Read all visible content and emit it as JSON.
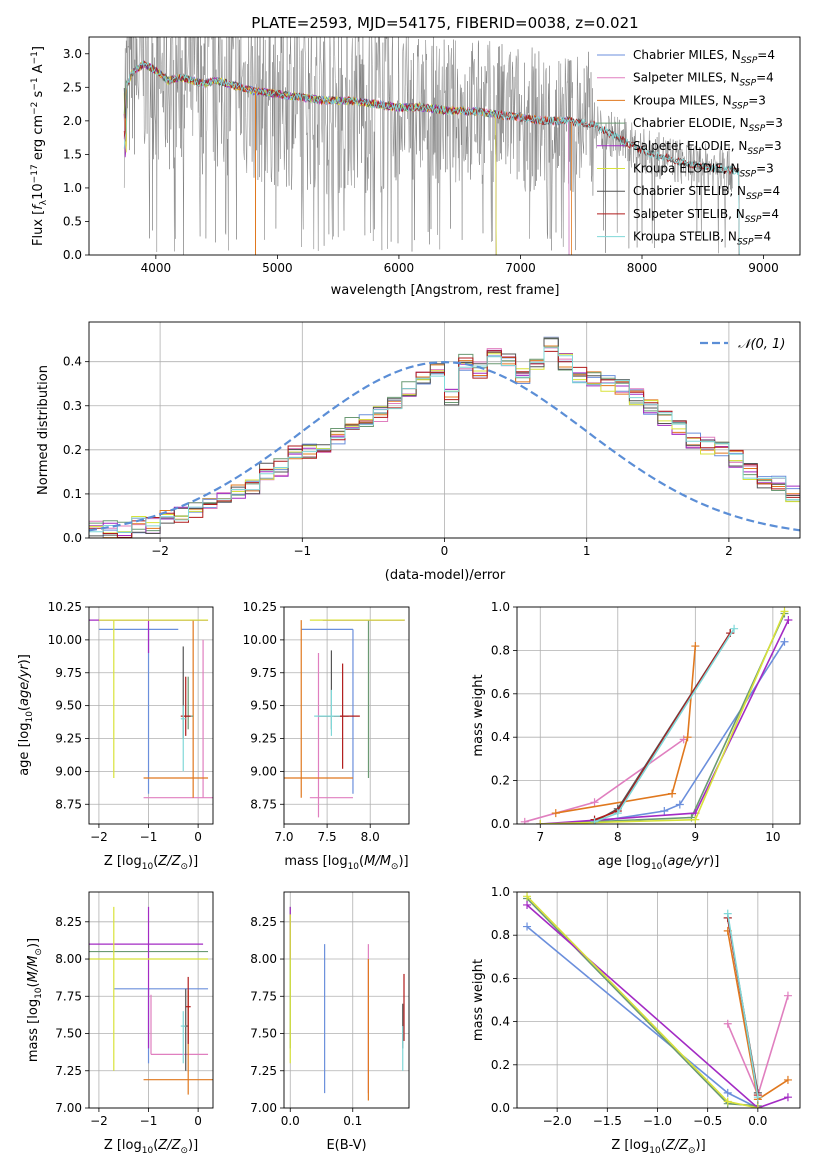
{
  "colors": {
    "Chabrier MILES": "#6b8fdc",
    "Salpeter MILES": "#e07fbf",
    "Kroupa MILES": "#e0781e",
    "Chabrier ELODIE": "#6b9a73",
    "Salpeter ELODIE": "#a32bc4",
    "Kroupa ELODIE": "#d8e23a",
    "Chabrier STELIB": "#555555",
    "Salpeter STELIB": "#b01c1c",
    "Kroupa STELIB": "#80d8d8",
    "data": "#808080",
    "normal": "#5b8ed6"
  },
  "chart_data": [
    {
      "id": "spectrum",
      "type": "line",
      "title": "PLATE=2593, MJD=54175, FIBERID=0038, z=0.021",
      "xlabel": "wavelength [Angstrom, rest frame]",
      "ylabel": "Flux [f_λ 10^-17 erg cm^-2 s^-1 A^-1]",
      "xlim": [
        3450,
        9300
      ],
      "ylim": [
        0,
        3.25
      ],
      "xticks": [
        4000,
        5000,
        6000,
        7000,
        8000,
        9000
      ],
      "yticks": [
        0.0,
        0.5,
        1.0,
        1.5,
        2.0,
        2.5,
        3.0
      ],
      "grid": false,
      "legend_position": "top-right",
      "model_continuum": {
        "x": [
          3740,
          3800,
          3900,
          4000,
          4100,
          4200,
          4300,
          4400,
          4500,
          4600,
          4700,
          4800,
          4900,
          5000,
          5200,
          5400,
          5600,
          5800,
          6000,
          6200,
          6400,
          6600,
          6800,
          7000,
          7200,
          7400,
          7600,
          7800,
          8000,
          8200,
          8400,
          8600,
          8800
        ],
        "y": [
          2.4,
          2.7,
          2.85,
          2.75,
          2.6,
          2.65,
          2.6,
          2.55,
          2.6,
          2.55,
          2.5,
          2.45,
          2.42,
          2.4,
          2.35,
          2.3,
          2.3,
          2.25,
          2.2,
          2.2,
          2.15,
          2.15,
          2.1,
          2.05,
          2.0,
          2.0,
          1.95,
          1.75,
          1.55,
          1.45,
          1.35,
          1.3,
          1.25
        ]
      },
      "series": [
        {
          "name": "Chabrier MILES, N_SSP=4",
          "xmax": 7400
        },
        {
          "name": "Salpeter MILES, N_SSP=4",
          "xmax": 7400
        },
        {
          "name": "Kroupa MILES, N_SSP=3",
          "xmax": 7420
        },
        {
          "name": "Chabrier ELODIE, N_SSP=3",
          "xmax": 6800
        },
        {
          "name": "Salpeter ELODIE, N_SSP=3",
          "xmax": 6800
        },
        {
          "name": "Kroupa ELODIE, N_SSP=3",
          "xmax": 6800
        },
        {
          "name": "Chabrier STELIB, N_SSP=4",
          "xmax": 8800
        },
        {
          "name": "Salpeter STELIB, N_SSP=4",
          "xmax": 8800
        },
        {
          "name": "Kroupa STELIB, N_SSP=4",
          "xmax": 8800
        }
      ]
    },
    {
      "id": "residuals",
      "type": "histogram",
      "xlabel": "(data-model)/error",
      "ylabel": "Normed distribution",
      "xlim": [
        -2.5,
        2.5
      ],
      "ylim": [
        0,
        0.49
      ],
      "xticks": [
        -2,
        -1,
        0,
        1,
        2
      ],
      "yticks": [
        0.0,
        0.1,
        0.2,
        0.3,
        0.4
      ],
      "grid": true,
      "legend_position": "top-right",
      "legend_label": "𝒩(0, 1)",
      "bin_edges_start": -2.5,
      "bin_width": 0.1,
      "bin_values": [
        0.02,
        0.02,
        0.02,
        0.03,
        0.03,
        0.05,
        0.05,
        0.06,
        0.07,
        0.09,
        0.11,
        0.12,
        0.15,
        0.16,
        0.19,
        0.2,
        0.2,
        0.23,
        0.26,
        0.27,
        0.28,
        0.31,
        0.34,
        0.36,
        0.38,
        0.32,
        0.4,
        0.38,
        0.41,
        0.4,
        0.37,
        0.4,
        0.44,
        0.4,
        0.37,
        0.36,
        0.35,
        0.34,
        0.32,
        0.3,
        0.27,
        0.25,
        0.22,
        0.21,
        0.2,
        0.18,
        0.15,
        0.13,
        0.12,
        0.1,
        0.08,
        0.07,
        0.06,
        0.05,
        0.04,
        0.04,
        0.03,
        0.03,
        0.02,
        0.02
      ]
    },
    {
      "id": "age-vs-Z",
      "type": "errorbar",
      "xlabel": "Z [log10(Z/Z⊙)]",
      "ylabel": "age  [log10(age/yr)]",
      "xlim": [
        -2.2,
        0.3
      ],
      "ylim": [
        8.6,
        10.25
      ],
      "xticks": [
        -2,
        -1,
        0
      ],
      "yticks": [
        8.75,
        9.0,
        9.25,
        9.5,
        9.75,
        10.0,
        10.25
      ],
      "grid": true,
      "points": [
        {
          "model": "Chabrier MILES",
          "x": -1.0,
          "y": 10.08,
          "xerr": [
            1.0,
            0.6
          ],
          "yerr": [
            1.25,
            0.0
          ]
        },
        {
          "model": "Salpeter MILES",
          "x": 0.1,
          "y": 8.8,
          "xerr": [
            1.2,
            0.2
          ],
          "yerr": [
            0.0,
            1.2
          ]
        },
        {
          "model": "Kroupa MILES",
          "x": -0.1,
          "y": 8.95,
          "xerr": [
            1.0,
            0.3
          ],
          "yerr": [
            0.15,
            1.2
          ]
        },
        {
          "model": "Chabrier ELODIE",
          "x": -0.2,
          "y": 9.42,
          "xerr": [
            0.1,
            0.1
          ],
          "yerr": [
            0.1,
            0.3
          ]
        },
        {
          "model": "Salpeter ELODIE",
          "x": -1.0,
          "y": 10.15,
          "xerr": [
            1.3,
            1.2
          ],
          "yerr": [
            0.25,
            0.0
          ]
        },
        {
          "model": "Kroupa ELODIE",
          "x": -1.7,
          "y": 10.15,
          "xerr": [
            0.3,
            1.9
          ],
          "yerr": [
            1.2,
            0.0
          ]
        },
        {
          "model": "Chabrier STELIB",
          "x": -0.3,
          "y": 9.45,
          "xerr": [
            0.0,
            0.0
          ],
          "yerr": [
            0.2,
            0.5
          ]
        },
        {
          "model": "Salpeter STELIB",
          "x": -0.25,
          "y": 9.42,
          "xerr": [
            0.1,
            0.1
          ],
          "yerr": [
            0.15,
            0.3
          ]
        },
        {
          "model": "Kroupa STELIB",
          "x": -0.3,
          "y": 9.4,
          "xerr": [
            0.05,
            0.05
          ],
          "yerr": [
            0.4,
            0.1
          ]
        }
      ]
    },
    {
      "id": "age-vs-mass",
      "type": "errorbar",
      "xlabel": "mass [log10(M/M⊙)]",
      "ylabel": "",
      "xlim": [
        7.0,
        8.45
      ],
      "ylim": [
        8.6,
        10.25
      ],
      "xticks": [
        7.0,
        7.5,
        8.0
      ],
      "yticks": [
        8.75,
        9.0,
        9.25,
        9.5,
        9.75,
        10.0,
        10.25
      ],
      "grid": true,
      "points": [
        {
          "model": "Chabrier MILES",
          "x": 7.8,
          "y": 10.08,
          "xerr": [
            0.6,
            0.0
          ],
          "yerr": [
            1.25,
            0.0
          ]
        },
        {
          "model": "Salpeter MILES",
          "x": 7.4,
          "y": 8.8,
          "xerr": [
            0.1,
            0.4
          ],
          "yerr": [
            0.15,
            1.1
          ]
        },
        {
          "model": "Kroupa MILES",
          "x": 7.2,
          "y": 8.95,
          "xerr": [
            0.2,
            0.6
          ],
          "yerr": [
            0.15,
            1.2
          ]
        },
        {
          "model": "Chabrier ELODIE",
          "x": 7.98,
          "y": 10.15,
          "xerr": [
            0.0,
            0.0
          ],
          "yerr": [
            1.2,
            0.0
          ]
        },
        {
          "model": "Salpeter ELODIE",
          "x": 8.05,
          "y": 10.15,
          "xerr": [
            0.6,
            0.35
          ],
          "yerr": [
            0.0,
            0.0
          ]
        },
        {
          "model": "Kroupa ELODIE",
          "x": 8.1,
          "y": 10.15,
          "xerr": [
            0.8,
            0.3
          ],
          "yerr": [
            0.0,
            0.0
          ]
        },
        {
          "model": "Chabrier STELIB",
          "x": 7.55,
          "y": 9.42,
          "xerr": [
            0.15,
            0.2
          ],
          "yerr": [
            0.1,
            0.5
          ]
        },
        {
          "model": "Salpeter STELIB",
          "x": 7.68,
          "y": 9.42,
          "xerr": [
            0.1,
            0.2
          ],
          "yerr": [
            0.4,
            0.4
          ]
        },
        {
          "model": "Kroupa STELIB",
          "x": 7.55,
          "y": 9.42,
          "xerr": [
            0.2,
            0.1
          ],
          "yerr": [
            0.15,
            0.2
          ]
        }
      ]
    },
    {
      "id": "weight-vs-age",
      "type": "line",
      "xlabel": "age  [log10(age/yr)]",
      "ylabel": "mass weight",
      "xlim": [
        6.7,
        10.35
      ],
      "ylim": [
        0,
        1.0
      ],
      "xticks": [
        7,
        8,
        9,
        10
      ],
      "yticks": [
        0.0,
        0.2,
        0.4,
        0.6,
        0.8,
        1.0
      ],
      "grid": true,
      "series": [
        {
          "model": "Chabrier MILES",
          "x": [
            7.7,
            8.6,
            8.8,
            10.15
          ],
          "y": [
            0.01,
            0.06,
            0.09,
            0.84
          ]
        },
        {
          "model": "Salpeter MILES",
          "x": [
            6.8,
            7.7,
            8.85
          ],
          "y": [
            0.01,
            0.1,
            0.39
          ]
        },
        {
          "model": "Kroupa MILES",
          "x": [
            7.2,
            8.7,
            8.9,
            9.0
          ],
          "y": [
            0.05,
            0.14,
            0.4,
            0.82
          ]
        },
        {
          "model": "Chabrier ELODIE",
          "x": [
            7.0,
            8.95,
            10.15
          ],
          "y": [
            0.0,
            0.03,
            0.97
          ]
        },
        {
          "model": "Salpeter ELODIE",
          "x": [
            7.0,
            9.0,
            10.2
          ],
          "y": [
            0.0,
            0.05,
            0.94
          ]
        },
        {
          "model": "Kroupa ELODIE",
          "x": [
            7.0,
            9.0,
            10.15
          ],
          "y": [
            0.0,
            0.02,
            0.98
          ]
        },
        {
          "model": "Chabrier STELIB",
          "x": [
            7.7,
            8.0,
            9.45
          ],
          "y": [
            0.01,
            0.07,
            0.88
          ]
        },
        {
          "model": "Salpeter STELIB",
          "x": [
            7.7,
            8.0,
            9.45
          ],
          "y": [
            0.02,
            0.06,
            0.88
          ]
        },
        {
          "model": "Kroupa STELIB",
          "x": [
            7.7,
            8.0,
            9.5
          ],
          "y": [
            0.01,
            0.05,
            0.9
          ]
        }
      ]
    },
    {
      "id": "mass-vs-Z",
      "type": "errorbar",
      "xlabel": "Z [log10(Z/Z⊙)]",
      "ylabel": "mass [log10(M/M⊙)]",
      "xlim": [
        -2.2,
        0.3
      ],
      "ylim": [
        7.0,
        8.45
      ],
      "xticks": [
        -2,
        -1,
        0
      ],
      "yticks": [
        7.0,
        7.25,
        7.5,
        7.75,
        8.0,
        8.25
      ],
      "grid": true,
      "points": [
        {
          "model": "Chabrier MILES",
          "x": -1.0,
          "y": 7.8,
          "xerr": [
            0.7,
            1.2
          ],
          "yerr": [
            0.5,
            0.0
          ]
        },
        {
          "model": "Salpeter MILES",
          "x": -0.95,
          "y": 7.36,
          "xerr": [
            0.0,
            1.15
          ],
          "yerr": [
            0.0,
            0.4
          ]
        },
        {
          "model": "Kroupa MILES",
          "x": -0.2,
          "y": 7.19,
          "xerr": [
            0.9,
            0.6
          ],
          "yerr": [
            0.1,
            0.6
          ]
        },
        {
          "model": "Chabrier ELODIE",
          "x": -1.0,
          "y": 8.05,
          "xerr": [
            1.2,
            1.2
          ],
          "yerr": [
            0.0,
            0.0
          ]
        },
        {
          "model": "Salpeter ELODIE",
          "x": -1.0,
          "y": 8.1,
          "xerr": [
            1.2,
            1.1
          ],
          "yerr": [
            0.7,
            0.25
          ]
        },
        {
          "model": "Kroupa ELODIE",
          "x": -1.7,
          "y": 8.0,
          "xerr": [
            0.5,
            1.9
          ],
          "yerr": [
            0.75,
            0.35
          ]
        },
        {
          "model": "Chabrier STELIB",
          "x": -0.25,
          "y": 7.55,
          "xerr": [
            0.05,
            0.05
          ],
          "yerr": [
            0.3,
            0.25
          ]
        },
        {
          "model": "Salpeter STELIB",
          "x": -0.2,
          "y": 7.68,
          "xerr": [
            0.05,
            0.05
          ],
          "yerr": [
            0.25,
            0.2
          ]
        },
        {
          "model": "Kroupa STELIB",
          "x": -0.3,
          "y": 7.55,
          "xerr": [
            0.05,
            0.05
          ],
          "yerr": [
            0.25,
            0.1
          ]
        }
      ]
    },
    {
      "id": "mass-vs-EBV",
      "type": "errorbar",
      "xlabel": "E(B-V)",
      "ylabel": "",
      "xlim": [
        -0.01,
        0.19
      ],
      "ylim": [
        7.0,
        8.45
      ],
      "xticks": [
        0.0,
        0.1
      ],
      "yticks": [
        7.0,
        7.25,
        7.5,
        7.75,
        8.0,
        8.25
      ],
      "grid": true,
      "points": [
        {
          "model": "Chabrier MILES",
          "x": 0.055,
          "y": 7.6,
          "xerr": [
            0.0,
            0.0
          ],
          "yerr": [
            0.5,
            0.5
          ]
        },
        {
          "model": "Salpeter MILES",
          "x": 0.125,
          "y": 7.6,
          "xerr": [
            0.0,
            0.0
          ],
          "yerr": [
            0.5,
            0.5
          ]
        },
        {
          "model": "Kroupa MILES",
          "x": 0.125,
          "y": 7.5,
          "xerr": [
            0.0,
            0.0
          ],
          "yerr": [
            0.45,
            0.5
          ]
        },
        {
          "model": "Chabrier ELODIE",
          "x": 0.0,
          "y": 7.9,
          "xerr": [
            0.0,
            0.0
          ],
          "yerr": [
            0.5,
            0.45
          ]
        },
        {
          "model": "Salpeter ELODIE",
          "x": 0.0,
          "y": 8.2,
          "xerr": [
            0.0,
            0.0
          ],
          "yerr": [
            0.2,
            0.15
          ]
        },
        {
          "model": "Kroupa ELODIE",
          "x": 0.0,
          "y": 7.8,
          "xerr": [
            0.0,
            0.0
          ],
          "yerr": [
            0.5,
            0.5
          ]
        },
        {
          "model": "Chabrier STELIB",
          "x": 0.18,
          "y": 7.55,
          "xerr": [
            0.0,
            0.0
          ],
          "yerr": [
            0.15,
            0.15
          ]
        },
        {
          "model": "Salpeter STELIB",
          "x": 0.182,
          "y": 7.65,
          "xerr": [
            0.0,
            0.0
          ],
          "yerr": [
            0.2,
            0.25
          ]
        },
        {
          "model": "Kroupa STELIB",
          "x": 0.18,
          "y": 7.45,
          "xerr": [
            0.0,
            0.0
          ],
          "yerr": [
            0.2,
            0.1
          ]
        }
      ]
    },
    {
      "id": "weight-vs-Z",
      "type": "line",
      "xlabel": "Z [log10(Z/Z⊙)]",
      "ylabel": "mass weight",
      "xlim": [
        -2.4,
        0.42
      ],
      "ylim": [
        0,
        1.0
      ],
      "xticks": [
        -2.0,
        -1.5,
        -1.0,
        -0.5,
        0.0
      ],
      "yticks": [
        0.0,
        0.2,
        0.4,
        0.6,
        0.8,
        1.0
      ],
      "grid": true,
      "series": [
        {
          "model": "Chabrier MILES",
          "x": [
            -2.3,
            -0.3,
            0.0
          ],
          "y": [
            0.84,
            0.07,
            0.0
          ]
        },
        {
          "model": "Salpeter MILES",
          "x": [
            -0.3,
            0.0,
            0.3
          ],
          "y": [
            0.39,
            0.06,
            0.52
          ]
        },
        {
          "model": "Kroupa MILES",
          "x": [
            -0.3,
            0.0,
            0.3
          ],
          "y": [
            0.82,
            0.04,
            0.13
          ]
        },
        {
          "model": "Chabrier ELODIE",
          "x": [
            -2.3,
            -0.3,
            0.0
          ],
          "y": [
            0.97,
            0.02,
            0.01
          ]
        },
        {
          "model": "Salpeter ELODIE",
          "x": [
            -2.3,
            0.0,
            0.3
          ],
          "y": [
            0.94,
            0.0,
            0.05
          ]
        },
        {
          "model": "Kroupa ELODIE",
          "x": [
            -2.3,
            -0.3,
            0.0
          ],
          "y": [
            0.98,
            0.03,
            0.0
          ]
        },
        {
          "model": "Chabrier STELIB",
          "x": [
            -0.3,
            0.0
          ],
          "y": [
            0.88,
            0.07
          ]
        },
        {
          "model": "Salpeter STELIB",
          "x": [
            -0.3,
            0.0
          ],
          "y": [
            0.88,
            0.06
          ]
        },
        {
          "model": "Kroupa STELIB",
          "x": [
            -0.3,
            0.0
          ],
          "y": [
            0.9,
            0.05
          ]
        }
      ]
    }
  ]
}
